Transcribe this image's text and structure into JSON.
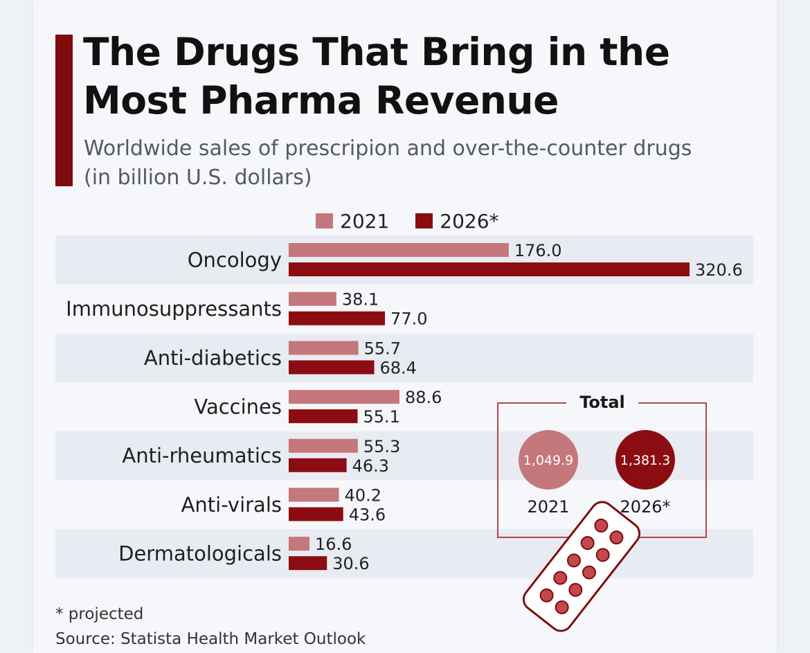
{
  "header": {
    "title_line1": "The Drugs That Bring in the",
    "title_line2": "Most Pharma Revenue",
    "subtitle_line1": "Worldwide sales of prescripion and over-the-counter drugs",
    "subtitle_line2": "(in billion U.S. dollars)"
  },
  "colors": {
    "series_2021": "#c4787c",
    "series_2026": "#8b0d12",
    "accent": "#7e0c10",
    "band": "#e8ebf2"
  },
  "chart_data": {
    "type": "bar",
    "orientation": "horizontal",
    "categories": [
      "Oncology",
      "Immunosuppressants",
      "Anti-diabetics",
      "Vaccines",
      "Anti-rheumatics",
      "Anti-virals",
      "Dermatologicals"
    ],
    "series": [
      {
        "name": "2021",
        "values": [
          176.0,
          38.1,
          55.7,
          88.6,
          55.3,
          40.2,
          16.6
        ],
        "labels": [
          "176.0",
          "38.1",
          "55.7",
          "88.6",
          "55.3",
          "40.2",
          "16.6"
        ]
      },
      {
        "name": "2026*",
        "values": [
          320.6,
          77.0,
          68.4,
          55.1,
          46.3,
          43.6,
          30.6
        ],
        "labels": [
          "320.6",
          "77.0",
          "68.4",
          "55.1",
          "46.3",
          "43.6",
          "30.6"
        ]
      }
    ],
    "xlim": [
      0,
      320.6
    ],
    "legend_position": "top",
    "grid": false
  },
  "totals": {
    "title": "Total",
    "items": [
      {
        "year": "2021",
        "value": "1,049.9"
      },
      {
        "year": "2026*",
        "value": "1,381.3"
      }
    ]
  },
  "footer": {
    "note": "* projected",
    "source": "Source: Statista Health Market Outlook"
  }
}
